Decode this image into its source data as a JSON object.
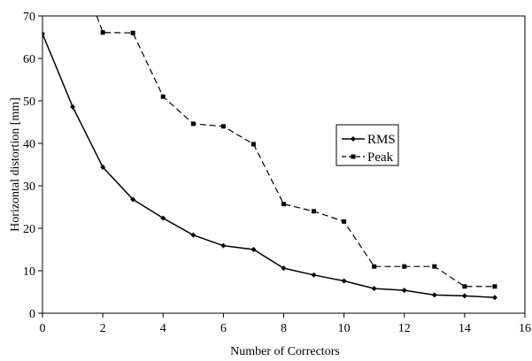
{
  "chart_data": {
    "type": "line",
    "title": "",
    "xlabel": "Number of Correctors",
    "ylabel": "Horizontal distortion [mm]",
    "xlim": [
      0,
      16
    ],
    "ylim": [
      0,
      70
    ],
    "xticks": [
      0,
      2,
      4,
      6,
      8,
      10,
      12,
      14,
      16
    ],
    "yticks": [
      0,
      10,
      20,
      30,
      40,
      50,
      60,
      70
    ],
    "grid": false,
    "legend_position": "center-right",
    "series": [
      {
        "name": "RMS",
        "style": "solid",
        "marker": "diamond",
        "color": "#000000",
        "x": [
          0,
          1,
          2,
          3,
          4,
          5,
          6,
          7,
          8,
          9,
          10,
          11,
          12,
          13,
          14,
          15
        ],
        "y": [
          65.8,
          48.6,
          34.4,
          26.8,
          22.4,
          18.4,
          15.9,
          15.0,
          10.6,
          9.0,
          7.6,
          5.8,
          5.4,
          4.3,
          4.1,
          3.7
        ]
      },
      {
        "name": "Peak",
        "style": "dashed",
        "marker": "square",
        "color": "#000000",
        "x": [
          1.8,
          2,
          3,
          4,
          5,
          6,
          7,
          8,
          9,
          10,
          11,
          12,
          13,
          14,
          15
        ],
        "y": [
          70,
          66.1,
          66.0,
          51.0,
          44.6,
          44.0,
          39.8,
          25.7,
          24.0,
          21.6,
          11.0,
          11.0,
          11.0,
          6.3,
          6.3
        ]
      }
    ]
  }
}
